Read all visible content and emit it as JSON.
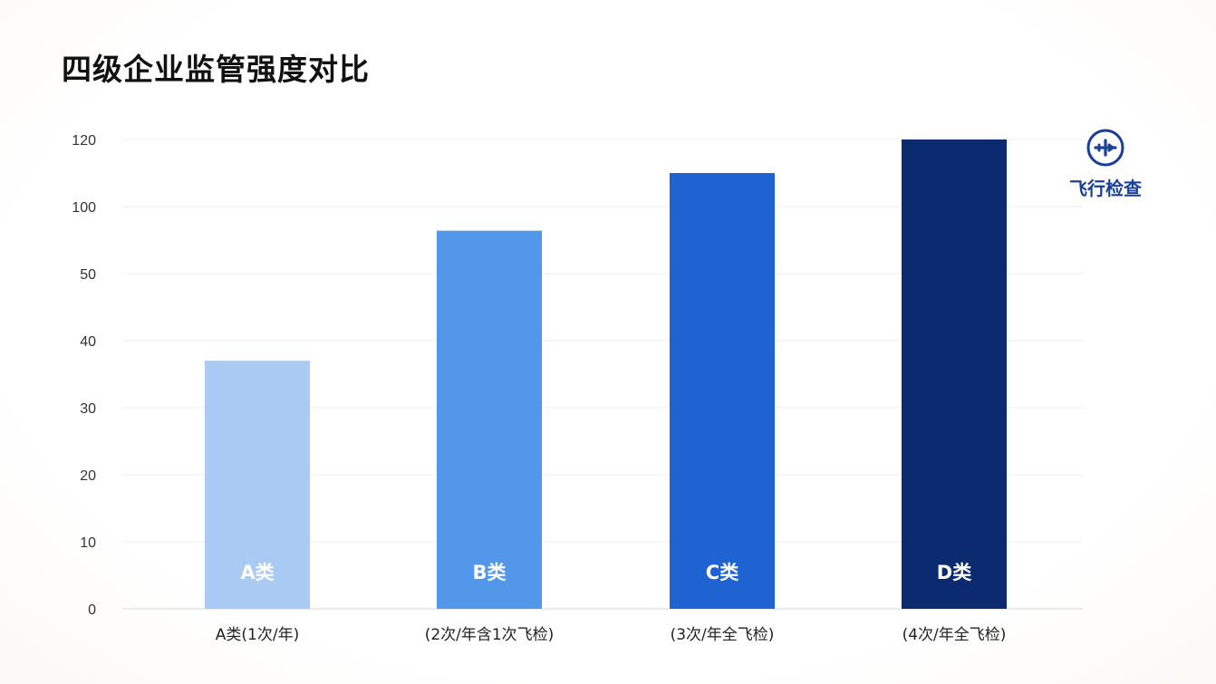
{
  "title": "四级企业监管强度对比",
  "legend": {
    "label": "飞行检查",
    "icon": "airplane-icon",
    "color": "#1a3f99"
  },
  "chart_data": {
    "type": "bar",
    "title": "四级企业监管强度对比",
    "xlabel": "",
    "ylabel": "",
    "yticks": [
      0,
      10,
      20,
      30,
      40,
      50,
      100,
      120
    ],
    "grid": true,
    "legend_position": "top-right",
    "categories": [
      "A类(1次/年)",
      "(2次/年含1次飞检)",
      "(3次/年全飞检)",
      "(4次/年全飞检)"
    ],
    "bar_labels": [
      "A类",
      "B类",
      "C类",
      "D类"
    ],
    "values": [
      37,
      82,
      110,
      120
    ],
    "colors": [
      "#a9caf3",
      "#5397eb",
      "#1f63d2",
      "#0b2a6f"
    ]
  }
}
